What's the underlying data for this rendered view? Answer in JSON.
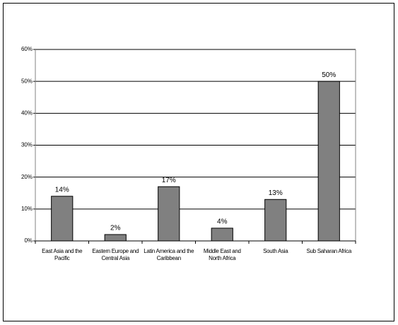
{
  "chart_data": {
    "type": "bar",
    "categories": [
      "East Asia and the Pacific",
      "Eastern Europe and Central Asia",
      "Latin America and the Caribbean",
      "Middle East and North Africa",
      "South Asia",
      "Sub Saharan Africa"
    ],
    "values": [
      14,
      2,
      17,
      4,
      13,
      50
    ],
    "value_labels": [
      "14%",
      "2%",
      "17%",
      "4%",
      "13%",
      "50%"
    ],
    "color": "#808080",
    "ylim": [
      0,
      60
    ],
    "yticks": [
      {
        "value": 0,
        "label": "0%"
      },
      {
        "value": 10,
        "label": "10%"
      },
      {
        "value": 20,
        "label": "20%"
      },
      {
        "value": 30,
        "label": "30%"
      },
      {
        "value": 40,
        "label": "40%"
      },
      {
        "value": 50,
        "label": "50%"
      },
      {
        "value": 60,
        "label": "60%"
      }
    ],
    "grid": true
  }
}
